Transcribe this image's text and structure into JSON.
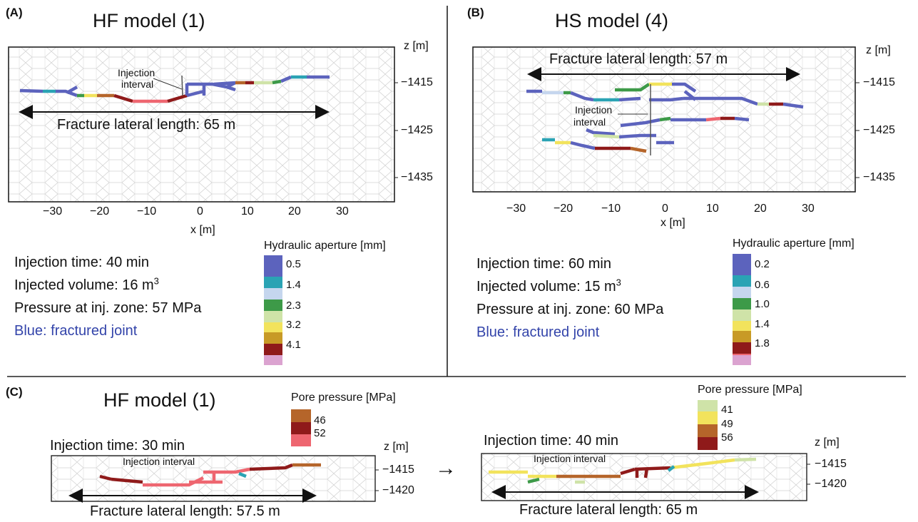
{
  "panelA": {
    "label": "(A)",
    "title": "HF model (1)",
    "z_axis_label": "z [m]",
    "x_axis_label": "x [m]",
    "z_ticks": [
      "−1415",
      "−1425",
      "−1435"
    ],
    "x_ticks": [
      "−30",
      "−20",
      "−10",
      "0",
      "10",
      "20",
      "30"
    ],
    "injection_label_line1": "Injection",
    "injection_label_line2": "interval",
    "fracture_length": "Fracture lateral length: 65 m",
    "info": {
      "time": "Injection time: 40 min",
      "volume_prefix": "Injected volume: 16 m",
      "volume_sup": "3",
      "pressure": "Pressure at inj. zone: 57 MPa",
      "blue_note": "Blue: fractured joint"
    },
    "legend": {
      "title": "Hydraulic aperture [mm]",
      "values": [
        "0.5",
        "1.4",
        "2.3",
        "3.2",
        "4.1"
      ]
    }
  },
  "panelB": {
    "label": "(B)",
    "title": "HS model (4)",
    "z_axis_label": "z [m]",
    "x_axis_label": "x [m]",
    "z_ticks": [
      "−1415",
      "−1425",
      "−1435"
    ],
    "x_ticks": [
      "−30",
      "−20",
      "−10",
      "0",
      "10",
      "20",
      "30"
    ],
    "injection_label_line1": "Injection",
    "injection_label_line2": "interval",
    "fracture_length": "Fracture lateral length: 57 m",
    "info": {
      "time": "Injection time: 60 min",
      "volume_prefix": "Injected volume: 15 m",
      "volume_sup": "3",
      "pressure": "Pressure at inj. zone: 60 MPa",
      "blue_note": "Blue: fractured joint"
    },
    "legend": {
      "title": "Hydraulic aperture [mm]",
      "values": [
        "0.2",
        "0.6",
        "1.0",
        "1.4",
        "1.8"
      ]
    }
  },
  "panelC": {
    "label": "(C)",
    "title": "HF model (1)",
    "left": {
      "time": "Injection time: 30 min",
      "injection_label": "Injection interval",
      "fracture_length": "Fracture lateral length: 57.5 m",
      "z_axis_label": "z [m]",
      "z_ticks": [
        "−1415",
        "−1420"
      ],
      "legend": {
        "title": "Pore pressure [MPa]",
        "values": [
          "46",
          "52"
        ]
      }
    },
    "arrow": "→",
    "right": {
      "time": "Injection time: 40 min",
      "injection_label": "Injection interval",
      "fracture_length": "Fracture lateral length: 65 m",
      "z_axis_label": "z [m]",
      "z_ticks": [
        "−1415",
        "−1420"
      ],
      "legend": {
        "title": "Pore pressure [MPa]",
        "values": [
          "41",
          "49",
          "56"
        ]
      }
    }
  },
  "colors": {
    "aperture_scale": [
      "#5c63bd",
      "#2aa3b4",
      "#c5d6ee",
      "#3d9a48",
      "#cfe3a8",
      "#f2e35c",
      "#c89a26",
      "#8f1a1a",
      "#ee6670",
      "#dba3d0"
    ],
    "pore_scale_left": [
      "#b5652a",
      "#8f1a1a",
      "#ee6670"
    ],
    "pore_scale_right": [
      "#cfe3a8",
      "#f2e35c",
      "#b5652a",
      "#8f1a1a"
    ],
    "blue_text": "#3344aa"
  }
}
